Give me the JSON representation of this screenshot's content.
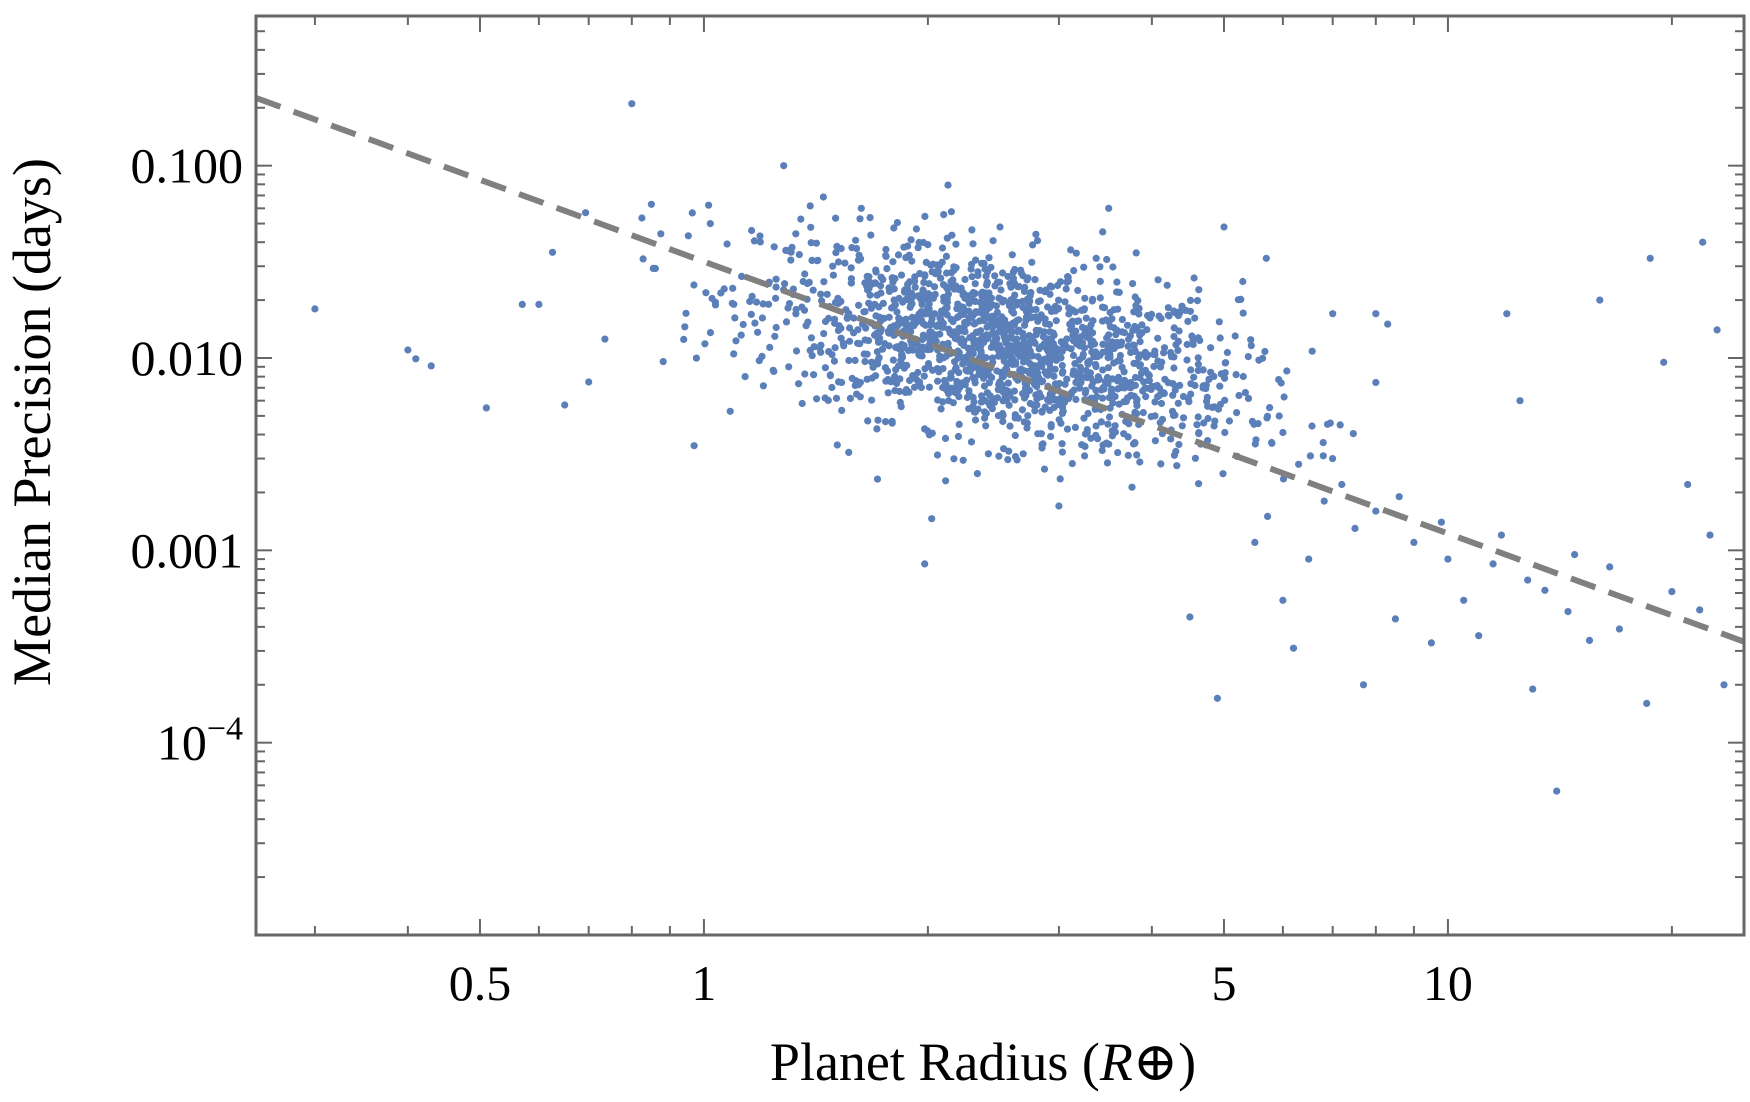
{
  "chart_data": {
    "type": "scatter",
    "title": "",
    "xlabel": "Planet Radius",
    "xlabel_unit": "R⊕",
    "ylabel": "Median Precision (days)",
    "xscale": "log",
    "yscale": "log",
    "xlim": [
      0.25,
      25
    ],
    "ylim": [
      1e-05,
      0.6
    ],
    "x_ticks": [
      {
        "value": 0.5,
        "label": "0.5"
      },
      {
        "value": 1,
        "label": "1"
      },
      {
        "value": 5,
        "label": "5"
      },
      {
        "value": 10,
        "label": "10"
      }
    ],
    "y_ticks": [
      {
        "value": 0.1,
        "label": "0.100"
      },
      {
        "value": 0.01,
        "label": "0.010"
      },
      {
        "value": 0.001,
        "label": "0.001"
      },
      {
        "value": 0.0001,
        "label_base": "10",
        "label_exp": "−4"
      }
    ],
    "grid": false,
    "legend": "none",
    "colors": {
      "points": "#5a7fb9",
      "trend": "#808080",
      "frame": "#666666"
    },
    "trend_line": {
      "style": "dashed",
      "points": [
        [
          0.25,
          0.225
        ],
        [
          25,
          0.000335
        ]
      ]
    },
    "cluster": {
      "description_free": true,
      "center": [
        2.5,
        0.0115
      ],
      "count": 1650,
      "log_sigma_x": 0.16,
      "log_sigma_y": 0.3
    },
    "points": [
      [
        0.3,
        0.018
      ],
      [
        0.4,
        0.011
      ],
      [
        0.41,
        0.0099
      ],
      [
        0.43,
        0.0091
      ],
      [
        0.51,
        0.0055
      ],
      [
        0.57,
        0.019
      ],
      [
        0.6,
        0.019
      ],
      [
        0.65,
        0.0057
      ],
      [
        0.7,
        0.0075
      ],
      [
        0.8,
        0.21
      ],
      [
        0.85,
        0.063
      ],
      [
        0.97,
        0.0035
      ],
      [
        1.02,
        0.05
      ],
      [
        1.28,
        0.1
      ],
      [
        1.3,
        0.009
      ],
      [
        1.98,
        0.00085
      ],
      [
        2.5,
        0.048
      ],
      [
        3.0,
        0.0017
      ],
      [
        3.5,
        0.06
      ],
      [
        4.5,
        0.00045
      ],
      [
        4.9,
        0.00017
      ],
      [
        5.0,
        0.048
      ],
      [
        5.3,
        0.025
      ],
      [
        5.7,
        0.033
      ],
      [
        6.0,
        0.00055
      ],
      [
        6.2,
        0.00031
      ],
      [
        7.0,
        0.017
      ],
      [
        8.0,
        0.017
      ],
      [
        8.3,
        0.015
      ],
      [
        12,
        0.017
      ],
      [
        12.5,
        0.006
      ],
      [
        14,
        5.6e-05
      ],
      [
        16,
        0.02
      ],
      [
        18.7,
        0.033
      ],
      [
        19.5,
        0.0095
      ],
      [
        21,
        0.0022
      ],
      [
        22,
        0.04
      ],
      [
        22.5,
        0.0012
      ],
      [
        23,
        0.014
      ],
      [
        23.5,
        0.0002
      ],
      [
        18.5,
        0.00016
      ],
      [
        13,
        0.00019
      ],
      [
        15.5,
        0.00034
      ],
      [
        7.7,
        0.0002
      ],
      [
        8.5,
        0.00044
      ],
      [
        9.5,
        0.00033
      ],
      [
        10.5,
        0.00055
      ],
      [
        11,
        0.00036
      ],
      [
        14.5,
        0.00048
      ],
      [
        17,
        0.00039
      ],
      [
        11.5,
        0.00085
      ],
      [
        12.8,
        0.0007
      ],
      [
        13.5,
        0.00062
      ],
      [
        9.0,
        0.0011
      ],
      [
        10,
        0.0009
      ],
      [
        7.5,
        0.0013
      ],
      [
        6.5,
        0.0009
      ],
      [
        5.5,
        0.0011
      ],
      [
        8.0,
        0.0016
      ],
      [
        9.8,
        0.0014
      ],
      [
        11.8,
        0.0012
      ],
      [
        14.8,
        0.00095
      ],
      [
        16.5,
        0.00082
      ],
      [
        20,
        0.00061
      ],
      [
        21.8,
        0.00049
      ],
      [
        6.3,
        0.0028
      ],
      [
        7.2,
        0.0022
      ],
      [
        8.6,
        0.0019
      ],
      [
        5.8,
        0.0036
      ],
      [
        6.8,
        0.0031
      ],
      [
        4.6,
        0.0045
      ],
      [
        5.2,
        0.0052
      ],
      [
        6.0,
        0.0041
      ],
      [
        4.3,
        0.0068
      ],
      [
        3.9,
        0.0075
      ]
    ]
  }
}
